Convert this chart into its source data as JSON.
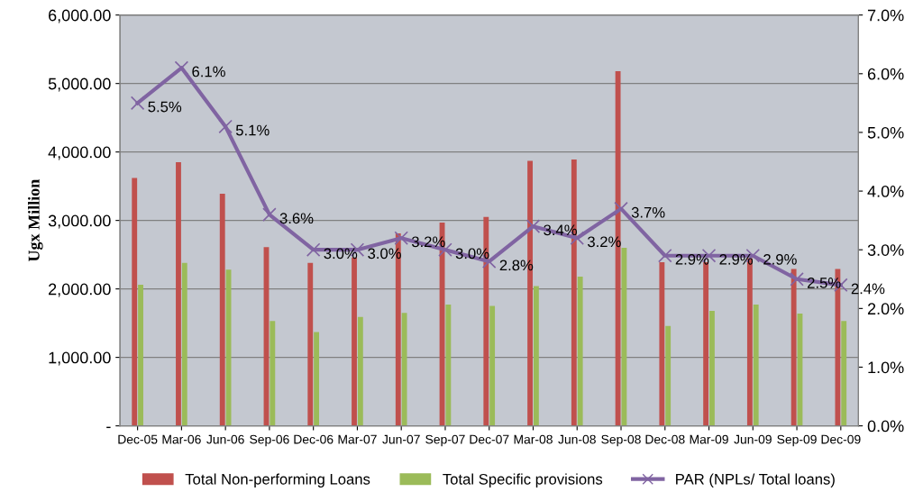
{
  "chart_data": {
    "type": "bar",
    "ylabel": "Ugx Million",
    "categories": [
      "Dec-05",
      "Mar-06",
      "Jun-06",
      "Sep-06",
      "Dec-06",
      "Mar-07",
      "Jun-07",
      "Sep-07",
      "Dec-07",
      "Mar-08",
      "Jun-08",
      "Sep-08",
      "Dec-08",
      "Mar-09",
      "Jun-09",
      "Sep-09",
      "Dec-09"
    ],
    "series": [
      {
        "name": "Total Non-performing Loans",
        "color": "#c0504d",
        "values": [
          3620,
          3850,
          3390,
          2610,
          2380,
          2460,
          2810,
          2970,
          3050,
          3870,
          3890,
          5180,
          2390,
          2390,
          2450,
          2290,
          2290
        ]
      },
      {
        "name": "Total Specific provisions",
        "color": "#9bbb59",
        "values": [
          2060,
          2380,
          2280,
          1530,
          1370,
          1590,
          1650,
          1770,
          1750,
          2040,
          2180,
          2600,
          1460,
          1680,
          1770,
          1640,
          1530
        ]
      },
      {
        "name": "PAR (NPLs/ Total loans)",
        "type": "line",
        "axis": "y2",
        "color": "#8064a2",
        "marker": "cross",
        "values": [
          5.5,
          6.1,
          5.1,
          3.6,
          3.0,
          3.0,
          3.2,
          3.0,
          2.8,
          3.4,
          3.2,
          3.7,
          2.9,
          2.9,
          2.9,
          2.5,
          2.4
        ],
        "value_labels": [
          "5.5%",
          "6.1%",
          "5.1%",
          "3.6%",
          "3.0%",
          "3.0%",
          "3.2%",
          "3.0%",
          "2.8%",
          "3.4%",
          "3.2%",
          "3.7%",
          "2.9%",
          "2.9%",
          "2.9%",
          "2.5%",
          "2.4%"
        ]
      }
    ],
    "ylim": [
      0,
      6000
    ],
    "yticks": [
      {
        "value": 0,
        "label": "-"
      },
      {
        "value": 1000,
        "label": "1,000.00"
      },
      {
        "value": 2000,
        "label": "2,000.00"
      },
      {
        "value": 3000,
        "label": "3,000.00"
      },
      {
        "value": 4000,
        "label": "4,000.00"
      },
      {
        "value": 5000,
        "label": "5,000.00"
      },
      {
        "value": 6000,
        "label": "6,000.00"
      }
    ],
    "y2lim": [
      0,
      7
    ],
    "y2ticks": [
      {
        "value": 0,
        "label": "0.0%"
      },
      {
        "value": 1,
        "label": "1.0%"
      },
      {
        "value": 2,
        "label": "2.0%"
      },
      {
        "value": 3,
        "label": "3.0%"
      },
      {
        "value": 4,
        "label": "4.0%"
      },
      {
        "value": 5,
        "label": "5.0%"
      },
      {
        "value": 6,
        "label": "6.0%"
      },
      {
        "value": 7,
        "label": "7.0%"
      }
    ],
    "grid": "y",
    "legend": "bottom"
  }
}
